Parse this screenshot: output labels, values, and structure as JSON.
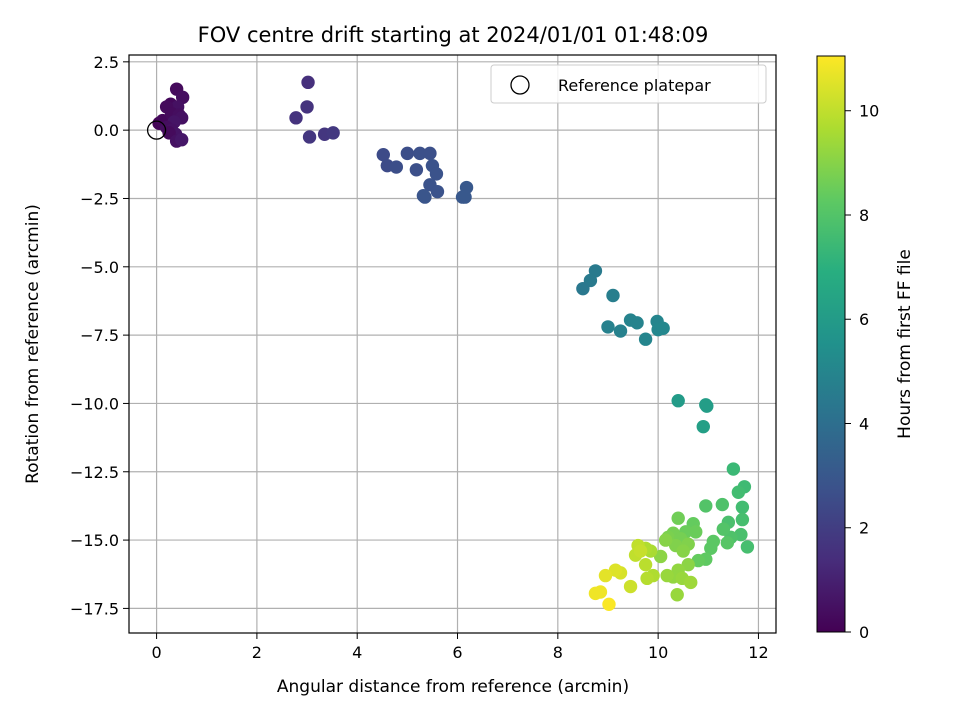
{
  "chart_data": {
    "type": "scatter",
    "title": "FOV centre drift starting at 2024/01/01 01:48:09",
    "xlabel": "Angular distance from reference (arcmin)",
    "ylabel": "Rotation from reference (arcmin)",
    "xlim": [
      -0.55,
      12.35
    ],
    "ylim": [
      -18.4,
      2.75
    ],
    "xticks": [
      0,
      2,
      4,
      6,
      8,
      10,
      12
    ],
    "xtick_labels": [
      "0",
      "2",
      "4",
      "6",
      "8",
      "10",
      "12"
    ],
    "yticks": [
      2.5,
      0.0,
      -2.5,
      -5.0,
      -7.5,
      -10.0,
      -12.5,
      -15.0,
      -17.5
    ],
    "ytick_labels": [
      "2.5",
      "0.0",
      "−2.5",
      "−5.0",
      "−7.5",
      "−10.0",
      "−12.5",
      "−15.0",
      "−17.5"
    ],
    "grid": true,
    "colormap": "viridis",
    "colorbar": {
      "label": "Hours from first FF file",
      "min": 0,
      "max": 11.05,
      "ticks": [
        0,
        2,
        4,
        6,
        8,
        10
      ],
      "tick_labels": [
        "0",
        "2",
        "4",
        "6",
        "8",
        "10"
      ]
    },
    "legend": {
      "label": "Reference platepar",
      "position": "top-right"
    },
    "reference_point": {
      "x": 0,
      "y": 0
    },
    "points": [
      {
        "x": 0.4,
        "y": 1.5,
        "h": 0.3
      },
      {
        "x": 0.52,
        "y": 1.2,
        "h": 0.4
      },
      {
        "x": 0.28,
        "y": 0.95,
        "h": 0.2
      },
      {
        "x": 0.42,
        "y": 0.85,
        "h": 0.5
      },
      {
        "x": 0.2,
        "y": 0.85,
        "h": 0.3
      },
      {
        "x": 0.05,
        "y": 0.25,
        "h": 0.1
      },
      {
        "x": 0.12,
        "y": 0.35,
        "h": 0.2
      },
      {
        "x": 0.3,
        "y": 0.6,
        "h": 0.3
      },
      {
        "x": 0.45,
        "y": 0.55,
        "h": 0.4
      },
      {
        "x": 0.5,
        "y": 0.45,
        "h": 0.5
      },
      {
        "x": 0.35,
        "y": 0.3,
        "h": 0.6
      },
      {
        "x": 0.2,
        "y": 0.1,
        "h": 0.4
      },
      {
        "x": 0.3,
        "y": 0.0,
        "h": 0.5
      },
      {
        "x": 0.38,
        "y": -0.15,
        "h": 0.6
      },
      {
        "x": 0.25,
        "y": -0.1,
        "h": 0.3
      },
      {
        "x": 0.4,
        "y": -0.4,
        "h": 0.5
      },
      {
        "x": 0.5,
        "y": -0.35,
        "h": 0.7
      },
      {
        "x": 3.02,
        "y": 1.75,
        "h": 1.5
      },
      {
        "x": 3.0,
        "y": 0.85,
        "h": 1.6
      },
      {
        "x": 2.78,
        "y": 0.45,
        "h": 1.6
      },
      {
        "x": 3.05,
        "y": -0.25,
        "h": 1.7
      },
      {
        "x": 3.35,
        "y": -0.15,
        "h": 1.7
      },
      {
        "x": 3.52,
        "y": -0.1,
        "h": 1.8
      },
      {
        "x": 4.52,
        "y": -0.9,
        "h": 2.5
      },
      {
        "x": 4.6,
        "y": -1.3,
        "h": 2.5
      },
      {
        "x": 4.78,
        "y": -1.35,
        "h": 2.6
      },
      {
        "x": 5.0,
        "y": -0.85,
        "h": 2.6
      },
      {
        "x": 5.25,
        "y": -0.85,
        "h": 2.7
      },
      {
        "x": 5.45,
        "y": -0.85,
        "h": 2.7
      },
      {
        "x": 5.18,
        "y": -1.45,
        "h": 2.7
      },
      {
        "x": 5.5,
        "y": -1.3,
        "h": 2.8
      },
      {
        "x": 5.58,
        "y": -1.6,
        "h": 2.8
      },
      {
        "x": 5.45,
        "y": -2.0,
        "h": 2.8
      },
      {
        "x": 5.6,
        "y": -2.25,
        "h": 2.8
      },
      {
        "x": 5.35,
        "y": -2.45,
        "h": 2.9
      },
      {
        "x": 5.32,
        "y": -2.4,
        "h": 2.9
      },
      {
        "x": 6.1,
        "y": -2.45,
        "h": 3.0
      },
      {
        "x": 6.18,
        "y": -2.1,
        "h": 3.0
      },
      {
        "x": 6.15,
        "y": -2.45,
        "h": 3.0
      },
      {
        "x": 8.75,
        "y": -5.15,
        "h": 4.5
      },
      {
        "x": 8.65,
        "y": -5.5,
        "h": 4.5
      },
      {
        "x": 8.5,
        "y": -5.8,
        "h": 4.4
      },
      {
        "x": 9.1,
        "y": -6.05,
        "h": 4.7
      },
      {
        "x": 9.0,
        "y": -7.2,
        "h": 4.8
      },
      {
        "x": 9.25,
        "y": -7.35,
        "h": 4.8
      },
      {
        "x": 9.45,
        "y": -6.95,
        "h": 4.9
      },
      {
        "x": 9.58,
        "y": -7.05,
        "h": 4.9
      },
      {
        "x": 9.75,
        "y": -7.65,
        "h": 5.0
      },
      {
        "x": 9.98,
        "y": -7.0,
        "h": 5.0
      },
      {
        "x": 10.0,
        "y": -7.3,
        "h": 5.1
      },
      {
        "x": 10.1,
        "y": -7.25,
        "h": 5.1
      },
      {
        "x": 10.4,
        "y": -9.9,
        "h": 6.0
      },
      {
        "x": 10.95,
        "y": -10.05,
        "h": 6.1
      },
      {
        "x": 10.97,
        "y": -10.1,
        "h": 6.1
      },
      {
        "x": 10.9,
        "y": -10.85,
        "h": 6.2
      },
      {
        "x": 11.5,
        "y": -12.4,
        "h": 7.4
      },
      {
        "x": 11.72,
        "y": -13.05,
        "h": 7.5
      },
      {
        "x": 11.6,
        "y": -13.25,
        "h": 7.6
      },
      {
        "x": 11.68,
        "y": -13.8,
        "h": 7.6
      },
      {
        "x": 11.68,
        "y": -14.25,
        "h": 7.7
      },
      {
        "x": 11.4,
        "y": -14.35,
        "h": 7.8
      },
      {
        "x": 11.28,
        "y": -13.7,
        "h": 7.9
      },
      {
        "x": 10.95,
        "y": -13.75,
        "h": 8.0
      },
      {
        "x": 11.78,
        "y": -15.25,
        "h": 7.7
      },
      {
        "x": 11.65,
        "y": -14.8,
        "h": 7.8
      },
      {
        "x": 11.45,
        "y": -14.9,
        "h": 7.9
      },
      {
        "x": 11.3,
        "y": -14.6,
        "h": 8.0
      },
      {
        "x": 11.38,
        "y": -15.1,
        "h": 8.1
      },
      {
        "x": 11.05,
        "y": -15.3,
        "h": 8.2
      },
      {
        "x": 11.1,
        "y": -15.05,
        "h": 8.2
      },
      {
        "x": 10.95,
        "y": -15.7,
        "h": 8.3
      },
      {
        "x": 10.8,
        "y": -15.75,
        "h": 8.4
      },
      {
        "x": 10.7,
        "y": -14.4,
        "h": 8.4
      },
      {
        "x": 10.75,
        "y": -14.7,
        "h": 8.5
      },
      {
        "x": 10.55,
        "y": -14.7,
        "h": 8.5
      },
      {
        "x": 10.4,
        "y": -14.2,
        "h": 8.6
      },
      {
        "x": 10.3,
        "y": -14.75,
        "h": 8.7
      },
      {
        "x": 10.2,
        "y": -14.9,
        "h": 8.8
      },
      {
        "x": 10.45,
        "y": -14.95,
        "h": 8.7
      },
      {
        "x": 10.6,
        "y": -15.15,
        "h": 8.9
      },
      {
        "x": 10.35,
        "y": -15.2,
        "h": 8.9
      },
      {
        "x": 10.5,
        "y": -15.4,
        "h": 9.0
      },
      {
        "x": 10.15,
        "y": -15.0,
        "h": 9.0
      },
      {
        "x": 10.05,
        "y": -15.6,
        "h": 9.1
      },
      {
        "x": 10.6,
        "y": -15.9,
        "h": 9.1
      },
      {
        "x": 10.4,
        "y": -16.1,
        "h": 9.2
      },
      {
        "x": 10.3,
        "y": -16.35,
        "h": 9.2
      },
      {
        "x": 10.48,
        "y": -16.4,
        "h": 9.3
      },
      {
        "x": 10.18,
        "y": -16.3,
        "h": 9.3
      },
      {
        "x": 10.65,
        "y": -16.55,
        "h": 9.4
      },
      {
        "x": 10.38,
        "y": -17.0,
        "h": 9.3
      },
      {
        "x": 9.85,
        "y": -15.4,
        "h": 9.6
      },
      {
        "x": 9.75,
        "y": -15.3,
        "h": 9.7
      },
      {
        "x": 9.9,
        "y": -16.3,
        "h": 9.7
      },
      {
        "x": 9.78,
        "y": -16.4,
        "h": 9.8
      },
      {
        "x": 9.75,
        "y": -15.9,
        "h": 9.9
      },
      {
        "x": 9.6,
        "y": -15.2,
        "h": 10.0
      },
      {
        "x": 9.55,
        "y": -15.55,
        "h": 10.0
      },
      {
        "x": 9.65,
        "y": -15.4,
        "h": 10.1
      },
      {
        "x": 9.45,
        "y": -16.7,
        "h": 10.2
      },
      {
        "x": 9.25,
        "y": -16.2,
        "h": 10.4
      },
      {
        "x": 9.15,
        "y": -16.1,
        "h": 10.5
      },
      {
        "x": 8.95,
        "y": -16.3,
        "h": 10.6
      },
      {
        "x": 8.85,
        "y": -16.9,
        "h": 10.8
      },
      {
        "x": 8.75,
        "y": -16.95,
        "h": 10.8
      },
      {
        "x": 9.02,
        "y": -17.35,
        "h": 11.0
      }
    ]
  }
}
